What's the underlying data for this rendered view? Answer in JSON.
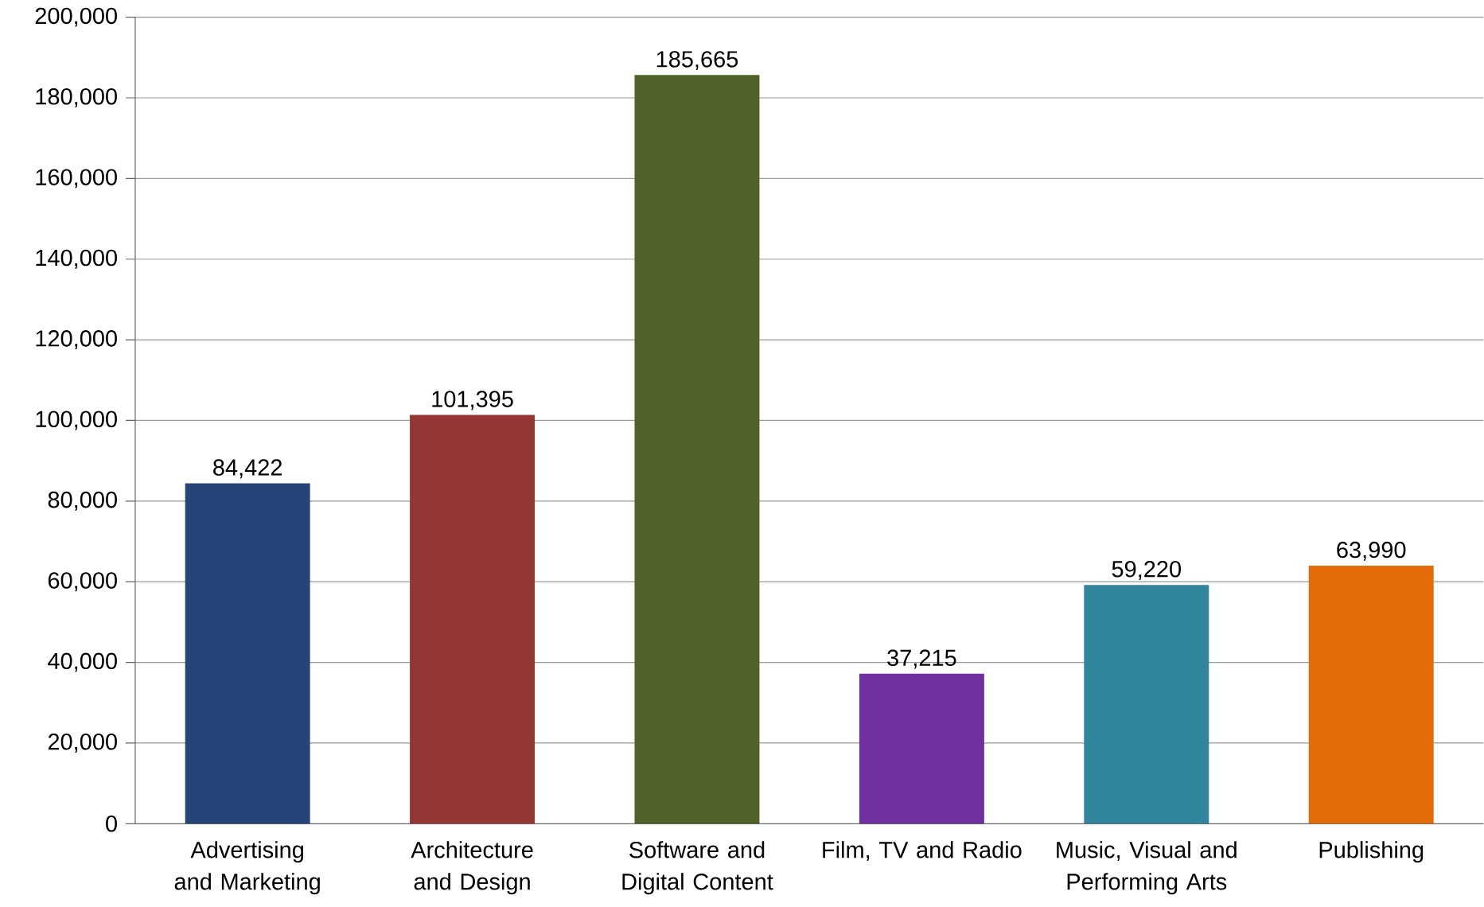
{
  "chart_data": {
    "type": "bar",
    "categories": [
      "Advertising and Marketing",
      "Architecture and Design",
      "Software and Digital Content",
      "Film, TV and Radio",
      "Music, Visual and Performing Arts",
      "Publishing"
    ],
    "values": [
      84422,
      101395,
      185665,
      37215,
      59220,
      63990
    ],
    "value_labels": [
      "84,422",
      "101,395",
      "185,665",
      "37,215",
      "59,220",
      "63,990"
    ],
    "colors": [
      "#264478",
      "#943634",
      "#4f6228",
      "#7030a0",
      "#31859c",
      "#e36c09"
    ],
    "ylim": [
      0,
      200000
    ],
    "yticks": [
      0,
      {
        "value": 20000,
        "label": "20,000"
      },
      {
        "value": 40000,
        "label": "40,000"
      },
      {
        "value": 60000,
        "label": "60,000"
      },
      {
        "value": 80000,
        "label": "80,000"
      },
      {
        "value": 100000,
        "label": "100,000"
      },
      {
        "value": 120000,
        "label": "120,000"
      },
      {
        "value": 140000,
        "label": "140,000"
      },
      {
        "value": 160000,
        "label": "160,000"
      },
      {
        "value": 180000,
        "label": "180,000"
      },
      {
        "value": 200000,
        "label": "200,000"
      }
    ],
    "grid": "y"
  }
}
